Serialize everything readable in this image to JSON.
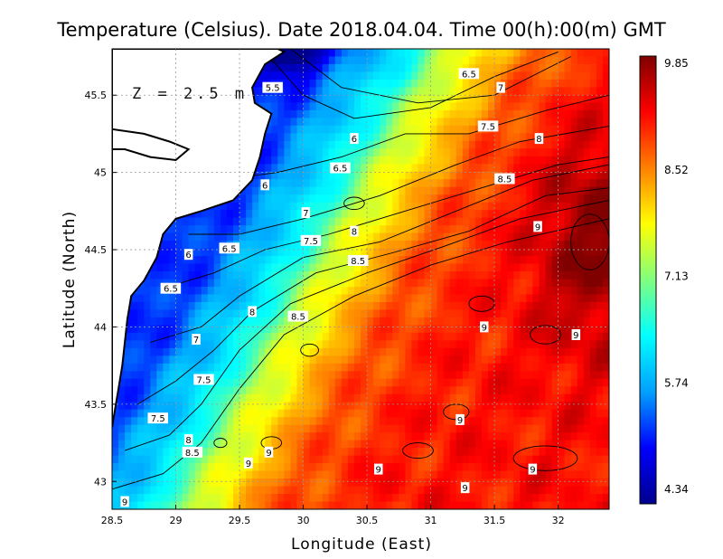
{
  "chart_data": {
    "type": "heatmap",
    "title": "Temperature (Celsius). Date 2018.04.04. Time 00(h):00(m)  GMT",
    "xlabel": "Longitude (East)",
    "ylabel": "Latitude (North)",
    "annotation": "Z = 2.5 m",
    "xlim": [
      28.5,
      32.4
    ],
    "ylim": [
      42.82,
      45.8
    ],
    "x_ticks": [
      "28.5",
      "29",
      "29.5",
      "30",
      "30.5",
      "31",
      "31.5",
      "32"
    ],
    "y_ticks": [
      "43",
      "43.5",
      "44",
      "44.5",
      "45",
      "45.5"
    ],
    "grid": true,
    "colorbar": {
      "min": 4.34,
      "max": 9.85,
      "tick_labels": [
        "9.85",
        "8.52",
        "7.13",
        "5.74",
        "4.34"
      ],
      "colormap": [
        "#00008f",
        "#0000ff",
        "#00a0ff",
        "#00ffff",
        "#80ff80",
        "#ffff00",
        "#ff8000",
        "#ff0000",
        "#800000"
      ]
    },
    "land_color": "#ffffff",
    "contour_levels": [
      5.5,
      6,
      6.5,
      7,
      7.5,
      8,
      8.5,
      9
    ],
    "contour_labels": [
      {
        "text": "6.5",
        "lon": 31.3,
        "lat": 45.64
      },
      {
        "text": "7",
        "lon": 31.55,
        "lat": 45.55
      },
      {
        "text": "5.5",
        "lon": 29.76,
        "lat": 45.55
      },
      {
        "text": "7.5",
        "lon": 31.45,
        "lat": 45.3
      },
      {
        "text": "8",
        "lon": 31.85,
        "lat": 45.22
      },
      {
        "text": "6",
        "lon": 30.4,
        "lat": 45.22
      },
      {
        "text": "6.5",
        "lon": 30.29,
        "lat": 45.03
      },
      {
        "text": "8.5",
        "lon": 31.58,
        "lat": 44.96
      },
      {
        "text": "6",
        "lon": 29.7,
        "lat": 44.92
      },
      {
        "text": "7",
        "lon": 30.02,
        "lat": 44.74
      },
      {
        "text": "8",
        "lon": 30.4,
        "lat": 44.62
      },
      {
        "text": "9",
        "lon": 31.84,
        "lat": 44.65
      },
      {
        "text": "6.5",
        "lon": 29.42,
        "lat": 44.51
      },
      {
        "text": "7.5",
        "lon": 30.06,
        "lat": 44.56
      },
      {
        "text": "6",
        "lon": 29.1,
        "lat": 44.47
      },
      {
        "text": "8.5",
        "lon": 30.43,
        "lat": 44.43
      },
      {
        "text": "6.5",
        "lon": 28.96,
        "lat": 44.25
      },
      {
        "text": "8",
        "lon": 29.6,
        "lat": 44.1
      },
      {
        "text": "8.5",
        "lon": 29.96,
        "lat": 44.07
      },
      {
        "text": "9",
        "lon": 31.42,
        "lat": 44.0
      },
      {
        "text": "9",
        "lon": 32.14,
        "lat": 43.95
      },
      {
        "text": "7",
        "lon": 29.16,
        "lat": 43.92
      },
      {
        "text": "7.5",
        "lon": 29.22,
        "lat": 43.66
      },
      {
        "text": "7.5",
        "lon": 28.86,
        "lat": 43.41
      },
      {
        "text": "9",
        "lon": 31.23,
        "lat": 43.4
      },
      {
        "text": "8",
        "lon": 29.1,
        "lat": 43.27
      },
      {
        "text": "8.5",
        "lon": 29.13,
        "lat": 43.19
      },
      {
        "text": "9",
        "lon": 29.73,
        "lat": 43.19
      },
      {
        "text": "9",
        "lon": 29.57,
        "lat": 43.12
      },
      {
        "text": "9",
        "lon": 30.59,
        "lat": 43.08
      },
      {
        "text": "9",
        "lon": 31.8,
        "lat": 43.08
      },
      {
        "text": "9",
        "lon": 31.27,
        "lat": 42.96
      },
      {
        "text": "9",
        "lon": 28.6,
        "lat": 42.87
      }
    ]
  }
}
